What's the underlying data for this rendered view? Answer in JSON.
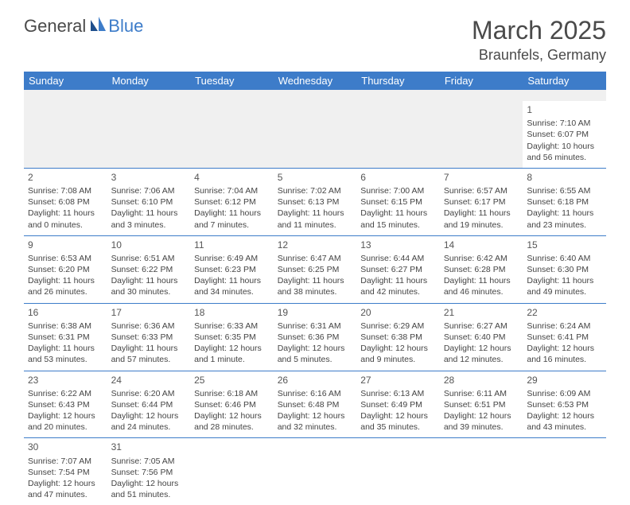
{
  "logo": {
    "word1": "General",
    "word2": "Blue"
  },
  "title": "March 2025",
  "location": "Braunfels, Germany",
  "colors": {
    "header_bg": "#3d7cc9",
    "header_text": "#ffffff",
    "border": "#3d7cc9",
    "blank_bg": "#f0f0f0",
    "text": "#444444"
  },
  "dayHeaders": [
    "Sunday",
    "Monday",
    "Tuesday",
    "Wednesday",
    "Thursday",
    "Friday",
    "Saturday"
  ],
  "weeks": [
    [
      null,
      null,
      null,
      null,
      null,
      null,
      {
        "n": "1",
        "sr": "Sunrise: 7:10 AM",
        "ss": "Sunset: 6:07 PM",
        "d1": "Daylight: 10 hours",
        "d2": "and 56 minutes."
      }
    ],
    [
      {
        "n": "2",
        "sr": "Sunrise: 7:08 AM",
        "ss": "Sunset: 6:08 PM",
        "d1": "Daylight: 11 hours",
        "d2": "and 0 minutes."
      },
      {
        "n": "3",
        "sr": "Sunrise: 7:06 AM",
        "ss": "Sunset: 6:10 PM",
        "d1": "Daylight: 11 hours",
        "d2": "and 3 minutes."
      },
      {
        "n": "4",
        "sr": "Sunrise: 7:04 AM",
        "ss": "Sunset: 6:12 PM",
        "d1": "Daylight: 11 hours",
        "d2": "and 7 minutes."
      },
      {
        "n": "5",
        "sr": "Sunrise: 7:02 AM",
        "ss": "Sunset: 6:13 PM",
        "d1": "Daylight: 11 hours",
        "d2": "and 11 minutes."
      },
      {
        "n": "6",
        "sr": "Sunrise: 7:00 AM",
        "ss": "Sunset: 6:15 PM",
        "d1": "Daylight: 11 hours",
        "d2": "and 15 minutes."
      },
      {
        "n": "7",
        "sr": "Sunrise: 6:57 AM",
        "ss": "Sunset: 6:17 PM",
        "d1": "Daylight: 11 hours",
        "d2": "and 19 minutes."
      },
      {
        "n": "8",
        "sr": "Sunrise: 6:55 AM",
        "ss": "Sunset: 6:18 PM",
        "d1": "Daylight: 11 hours",
        "d2": "and 23 minutes."
      }
    ],
    [
      {
        "n": "9",
        "sr": "Sunrise: 6:53 AM",
        "ss": "Sunset: 6:20 PM",
        "d1": "Daylight: 11 hours",
        "d2": "and 26 minutes."
      },
      {
        "n": "10",
        "sr": "Sunrise: 6:51 AM",
        "ss": "Sunset: 6:22 PM",
        "d1": "Daylight: 11 hours",
        "d2": "and 30 minutes."
      },
      {
        "n": "11",
        "sr": "Sunrise: 6:49 AM",
        "ss": "Sunset: 6:23 PM",
        "d1": "Daylight: 11 hours",
        "d2": "and 34 minutes."
      },
      {
        "n": "12",
        "sr": "Sunrise: 6:47 AM",
        "ss": "Sunset: 6:25 PM",
        "d1": "Daylight: 11 hours",
        "d2": "and 38 minutes."
      },
      {
        "n": "13",
        "sr": "Sunrise: 6:44 AM",
        "ss": "Sunset: 6:27 PM",
        "d1": "Daylight: 11 hours",
        "d2": "and 42 minutes."
      },
      {
        "n": "14",
        "sr": "Sunrise: 6:42 AM",
        "ss": "Sunset: 6:28 PM",
        "d1": "Daylight: 11 hours",
        "d2": "and 46 minutes."
      },
      {
        "n": "15",
        "sr": "Sunrise: 6:40 AM",
        "ss": "Sunset: 6:30 PM",
        "d1": "Daylight: 11 hours",
        "d2": "and 49 minutes."
      }
    ],
    [
      {
        "n": "16",
        "sr": "Sunrise: 6:38 AM",
        "ss": "Sunset: 6:31 PM",
        "d1": "Daylight: 11 hours",
        "d2": "and 53 minutes."
      },
      {
        "n": "17",
        "sr": "Sunrise: 6:36 AM",
        "ss": "Sunset: 6:33 PM",
        "d1": "Daylight: 11 hours",
        "d2": "and 57 minutes."
      },
      {
        "n": "18",
        "sr": "Sunrise: 6:33 AM",
        "ss": "Sunset: 6:35 PM",
        "d1": "Daylight: 12 hours",
        "d2": "and 1 minute."
      },
      {
        "n": "19",
        "sr": "Sunrise: 6:31 AM",
        "ss": "Sunset: 6:36 PM",
        "d1": "Daylight: 12 hours",
        "d2": "and 5 minutes."
      },
      {
        "n": "20",
        "sr": "Sunrise: 6:29 AM",
        "ss": "Sunset: 6:38 PM",
        "d1": "Daylight: 12 hours",
        "d2": "and 9 minutes."
      },
      {
        "n": "21",
        "sr": "Sunrise: 6:27 AM",
        "ss": "Sunset: 6:40 PM",
        "d1": "Daylight: 12 hours",
        "d2": "and 12 minutes."
      },
      {
        "n": "22",
        "sr": "Sunrise: 6:24 AM",
        "ss": "Sunset: 6:41 PM",
        "d1": "Daylight: 12 hours",
        "d2": "and 16 minutes."
      }
    ],
    [
      {
        "n": "23",
        "sr": "Sunrise: 6:22 AM",
        "ss": "Sunset: 6:43 PM",
        "d1": "Daylight: 12 hours",
        "d2": "and 20 minutes."
      },
      {
        "n": "24",
        "sr": "Sunrise: 6:20 AM",
        "ss": "Sunset: 6:44 PM",
        "d1": "Daylight: 12 hours",
        "d2": "and 24 minutes."
      },
      {
        "n": "25",
        "sr": "Sunrise: 6:18 AM",
        "ss": "Sunset: 6:46 PM",
        "d1": "Daylight: 12 hours",
        "d2": "and 28 minutes."
      },
      {
        "n": "26",
        "sr": "Sunrise: 6:16 AM",
        "ss": "Sunset: 6:48 PM",
        "d1": "Daylight: 12 hours",
        "d2": "and 32 minutes."
      },
      {
        "n": "27",
        "sr": "Sunrise: 6:13 AM",
        "ss": "Sunset: 6:49 PM",
        "d1": "Daylight: 12 hours",
        "d2": "and 35 minutes."
      },
      {
        "n": "28",
        "sr": "Sunrise: 6:11 AM",
        "ss": "Sunset: 6:51 PM",
        "d1": "Daylight: 12 hours",
        "d2": "and 39 minutes."
      },
      {
        "n": "29",
        "sr": "Sunrise: 6:09 AM",
        "ss": "Sunset: 6:53 PM",
        "d1": "Daylight: 12 hours",
        "d2": "and 43 minutes."
      }
    ],
    [
      {
        "n": "30",
        "sr": "Sunrise: 7:07 AM",
        "ss": "Sunset: 7:54 PM",
        "d1": "Daylight: 12 hours",
        "d2": "and 47 minutes."
      },
      {
        "n": "31",
        "sr": "Sunrise: 7:05 AM",
        "ss": "Sunset: 7:56 PM",
        "d1": "Daylight: 12 hours",
        "d2": "and 51 minutes."
      },
      null,
      null,
      null,
      null,
      null
    ]
  ]
}
